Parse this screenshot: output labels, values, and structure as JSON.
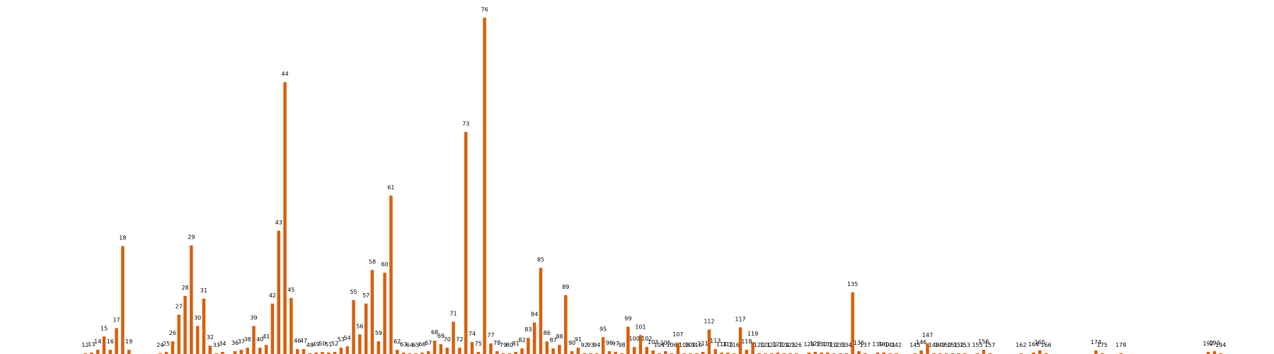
{
  "chart_data": {
    "type": "bar",
    "title": "",
    "xlabel": "",
    "ylabel": "",
    "ylim": [
      0,
      4800
    ],
    "grid": false,
    "legend": "none",
    "bar_color": "#d95f0e",
    "label_color": "#000000",
    "background": "#ffffff",
    "x_range": [
      4,
      198
    ],
    "points": [
      {
        "x": 12,
        "value": 10
      },
      {
        "x": 13,
        "value": 20
      },
      {
        "x": 14,
        "value": 60
      },
      {
        "x": 15,
        "value": 250
      },
      {
        "x": 16,
        "value": 60
      },
      {
        "x": 17,
        "value": 370
      },
      {
        "x": 18,
        "value": 1540
      },
      {
        "x": 19,
        "value": 60
      },
      {
        "x": 24,
        "value": 10
      },
      {
        "x": 25,
        "value": 30
      },
      {
        "x": 26,
        "value": 180
      },
      {
        "x": 27,
        "value": 560
      },
      {
        "x": 28,
        "value": 830
      },
      {
        "x": 29,
        "value": 1550
      },
      {
        "x": 30,
        "value": 400
      },
      {
        "x": 31,
        "value": 790
      },
      {
        "x": 32,
        "value": 120
      },
      {
        "x": 33,
        "value": 10
      },
      {
        "x": 34,
        "value": 30
      },
      {
        "x": 36,
        "value": 40
      },
      {
        "x": 37,
        "value": 60
      },
      {
        "x": 38,
        "value": 90
      },
      {
        "x": 39,
        "value": 400
      },
      {
        "x": 40,
        "value": 90
      },
      {
        "x": 41,
        "value": 130
      },
      {
        "x": 42,
        "value": 720
      },
      {
        "x": 43,
        "value": 1760
      },
      {
        "x": 44,
        "value": 3880
      },
      {
        "x": 45,
        "value": 800
      },
      {
        "x": 46,
        "value": 70
      },
      {
        "x": 47,
        "value": 70
      },
      {
        "x": 48,
        "value": 10
      },
      {
        "x": 49,
        "value": 20
      },
      {
        "x": 50,
        "value": 30
      },
      {
        "x": 51,
        "value": 20
      },
      {
        "x": 52,
        "value": 30
      },
      {
        "x": 53,
        "value": 90
      },
      {
        "x": 54,
        "value": 110
      },
      {
        "x": 55,
        "value": 770
      },
      {
        "x": 56,
        "value": 280
      },
      {
        "x": 57,
        "value": 720
      },
      {
        "x": 58,
        "value": 1200
      },
      {
        "x": 59,
        "value": 180
      },
      {
        "x": 60,
        "value": 1160
      },
      {
        "x": 61,
        "value": 2260
      },
      {
        "x": 62,
        "value": 60
      },
      {
        "x": 63,
        "value": 20
      },
      {
        "x": 64,
        "value": 10
      },
      {
        "x": 65,
        "value": 10
      },
      {
        "x": 66,
        "value": 20
      },
      {
        "x": 67,
        "value": 40
      },
      {
        "x": 68,
        "value": 190
      },
      {
        "x": 69,
        "value": 140
      },
      {
        "x": 70,
        "value": 90
      },
      {
        "x": 71,
        "value": 460
      },
      {
        "x": 72,
        "value": 90
      },
      {
        "x": 73,
        "value": 3170
      },
      {
        "x": 74,
        "value": 170
      },
      {
        "x": 75,
        "value": 30
      },
      {
        "x": 76,
        "value": 4800
      },
      {
        "x": 77,
        "value": 150
      },
      {
        "x": 78,
        "value": 40
      },
      {
        "x": 79,
        "value": 10
      },
      {
        "x": 80,
        "value": 10
      },
      {
        "x": 81,
        "value": 30
      },
      {
        "x": 82,
        "value": 80
      },
      {
        "x": 83,
        "value": 230
      },
      {
        "x": 84,
        "value": 450
      },
      {
        "x": 85,
        "value": 1230
      },
      {
        "x": 86,
        "value": 180
      },
      {
        "x": 87,
        "value": 80
      },
      {
        "x": 88,
        "value": 130
      },
      {
        "x": 89,
        "value": 840
      },
      {
        "x": 90,
        "value": 40
      },
      {
        "x": 91,
        "value": 90
      },
      {
        "x": 92,
        "value": 10
      },
      {
        "x": 93,
        "value": 10
      },
      {
        "x": 94,
        "value": 10
      },
      {
        "x": 95,
        "value": 240
      },
      {
        "x": 96,
        "value": 40
      },
      {
        "x": 97,
        "value": 30
      },
      {
        "x": 98,
        "value": 10
      },
      {
        "x": 99,
        "value": 390
      },
      {
        "x": 100,
        "value": 100
      },
      {
        "x": 101,
        "value": 270
      },
      {
        "x": 102,
        "value": 100
      },
      {
        "x": 103,
        "value": 50
      },
      {
        "x": 104,
        "value": 10
      },
      {
        "x": 105,
        "value": 40
      },
      {
        "x": 106,
        "value": 10
      },
      {
        "x": 107,
        "value": 160
      },
      {
        "x": 108,
        "value": 10
      },
      {
        "x": 109,
        "value": 10
      },
      {
        "x": 110,
        "value": 10
      },
      {
        "x": 111,
        "value": 30
      },
      {
        "x": 112,
        "value": 350
      },
      {
        "x": 113,
        "value": 70
      },
      {
        "x": 114,
        "value": 20
      },
      {
        "x": 115,
        "value": 20
      },
      {
        "x": 116,
        "value": 10
      },
      {
        "x": 117,
        "value": 380
      },
      {
        "x": 118,
        "value": 60
      },
      {
        "x": 119,
        "value": 170
      },
      {
        "x": 120,
        "value": 10
      },
      {
        "x": 121,
        "value": 10
      },
      {
        "x": 122,
        "value": 10
      },
      {
        "x": 123,
        "value": 20
      },
      {
        "x": 124,
        "value": 10
      },
      {
        "x": 125,
        "value": 10
      },
      {
        "x": 126,
        "value": 10
      },
      {
        "x": 128,
        "value": 20
      },
      {
        "x": 129,
        "value": 30
      },
      {
        "x": 130,
        "value": 20
      },
      {
        "x": 131,
        "value": 20
      },
      {
        "x": 132,
        "value": 10
      },
      {
        "x": 133,
        "value": 10
      },
      {
        "x": 134,
        "value": 10
      },
      {
        "x": 135,
        "value": 880
      },
      {
        "x": 136,
        "value": 40
      },
      {
        "x": 137,
        "value": 10
      },
      {
        "x": 139,
        "value": 20
      },
      {
        "x": 140,
        "value": 20
      },
      {
        "x": 141,
        "value": 10
      },
      {
        "x": 142,
        "value": 10
      },
      {
        "x": 145,
        "value": 10
      },
      {
        "x": 146,
        "value": 50
      },
      {
        "x": 147,
        "value": 150
      },
      {
        "x": 148,
        "value": 10
      },
      {
        "x": 149,
        "value": 10
      },
      {
        "x": 150,
        "value": 10
      },
      {
        "x": 151,
        "value": 10
      },
      {
        "x": 152,
        "value": 10
      },
      {
        "x": 153,
        "value": 10
      },
      {
        "x": 155,
        "value": 10
      },
      {
        "x": 156,
        "value": 60
      },
      {
        "x": 157,
        "value": 10
      },
      {
        "x": 162,
        "value": 10
      },
      {
        "x": 164,
        "value": 20
      },
      {
        "x": 165,
        "value": 50
      },
      {
        "x": 166,
        "value": 10
      },
      {
        "x": 174,
        "value": 50
      },
      {
        "x": 175,
        "value": 10
      },
      {
        "x": 178,
        "value": 10
      },
      {
        "x": 192,
        "value": 30
      },
      {
        "x": 193,
        "value": 40
      },
      {
        "x": 194,
        "value": 10
      }
    ]
  }
}
